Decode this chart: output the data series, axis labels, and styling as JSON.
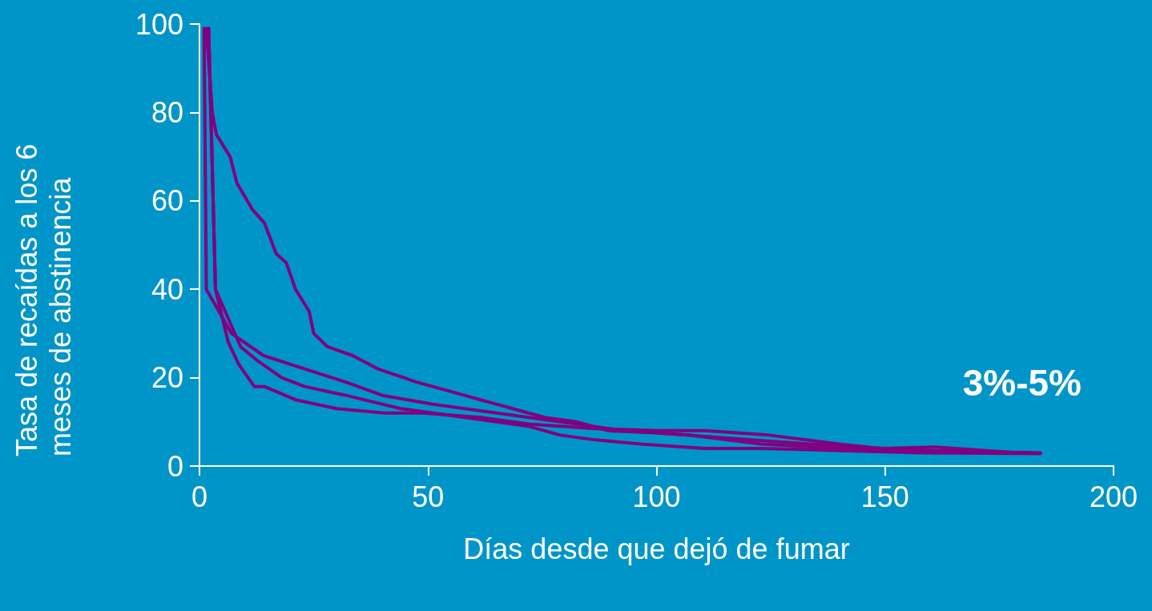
{
  "chart_data": {
    "type": "line",
    "xlabel": "Días desde que dejó de fumar",
    "ylabel": "Tasa de recaídas a los 6 meses de abstinencia",
    "annotations": [
      "3%-5%"
    ],
    "xlim": [
      0,
      200
    ],
    "xticks": [
      0,
      50,
      100,
      150,
      200
    ],
    "ylim": [
      0,
      100
    ],
    "yticks": [
      0,
      20,
      40,
      60,
      80,
      100
    ],
    "grid": false,
    "marker": "none",
    "line_style": "solid",
    "series": [
      {
        "color": "#800080",
        "x": [
          1.5,
          2.8,
          3.7,
          6.7,
          8.2,
          11.6,
          14.2,
          16.8,
          19,
          21,
          24,
          25,
          28,
          33.5,
          39,
          47.5,
          54.5,
          61.5,
          68.5,
          75.5,
          82.5,
          89.5,
          100,
          120,
          140,
          160,
          184
        ],
        "values": [
          99,
          80,
          75,
          70,
          64,
          58,
          55,
          48,
          46,
          40,
          35,
          30,
          27,
          25,
          22,
          19,
          17,
          15,
          13,
          11,
          10,
          8,
          7.5,
          6,
          4.5,
          3.5,
          3
        ]
      },
      {
        "color": "#800080",
        "x": [
          1,
          1.5,
          7,
          14,
          23,
          32,
          40,
          51,
          65,
          79,
          93,
          107,
          123,
          140,
          158,
          175
        ],
        "values": [
          99,
          40,
          30,
          25,
          22,
          19,
          16,
          14,
          12,
          10,
          8,
          7,
          5,
          4,
          3.5,
          3
        ]
      },
      {
        "color": "#800080",
        "x": [
          2,
          3.5,
          9,
          12.5,
          18,
          23,
          32,
          44,
          58,
          72,
          79,
          86,
          96.5,
          110.6,
          123,
          140,
          158,
          184
        ],
        "values": [
          99,
          40,
          27,
          24,
          20,
          18,
          16,
          13,
          11,
          9,
          7,
          6,
          5,
          4,
          4,
          3.5,
          3,
          2.8
        ]
      },
      {
        "color": "#800080",
        "x": [
          2,
          3.5,
          6.3,
          8.6,
          12,
          14.2,
          21,
          30,
          40.5,
          49,
          61.5,
          72,
          86,
          100,
          110.6,
          124.6,
          140,
          149,
          161,
          179
        ],
        "values": [
          99,
          40,
          28,
          23,
          18,
          18,
          15,
          13,
          12,
          12,
          11,
          9.5,
          8.5,
          8,
          8,
          7,
          5,
          4,
          4.3,
          3
        ]
      }
    ]
  }
}
